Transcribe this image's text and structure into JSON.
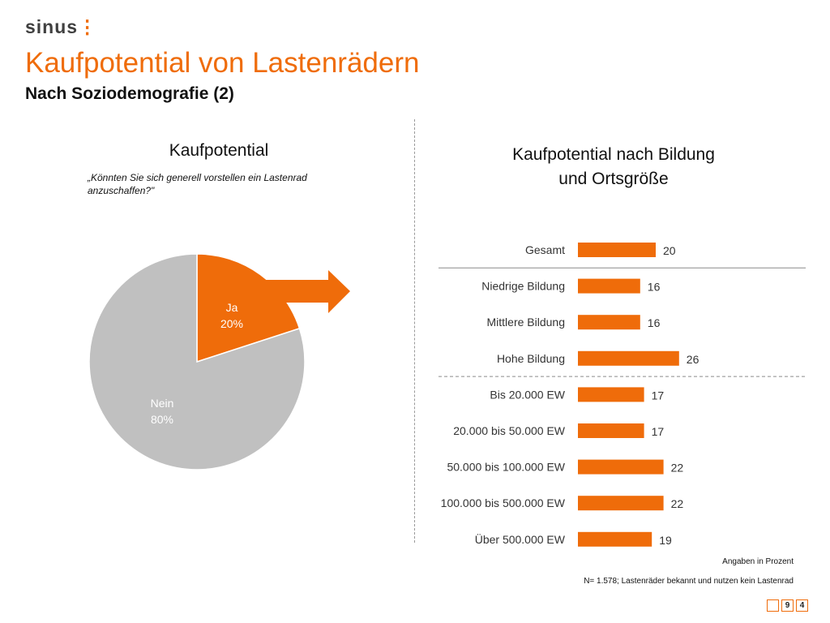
{
  "brand": {
    "logo_text": "sinus",
    "accent_color": "#ef6c0a"
  },
  "header": {
    "title": "Kaufpotential von Lastenrädern",
    "subtitle": "Nach Soziodemografie (2)"
  },
  "left_panel": {
    "heading": "Kaufpotential",
    "question": "„Könnten Sie sich generell vorstellen ein Lastenrad anzuschaffen?\""
  },
  "right_panel": {
    "heading_line1": "Kaufpotential nach Bildung",
    "heading_line2": "und Ortsgröße"
  },
  "chart_data": [
    {
      "type": "pie",
      "slices": [
        {
          "label": "Ja",
          "value": 20,
          "value_label": "20%",
          "color": "#ef6c0a"
        },
        {
          "label": "Nein",
          "value": 80,
          "value_label": "80%",
          "color": "#c0c0c0"
        }
      ]
    },
    {
      "type": "bar",
      "orientation": "horizontal",
      "categories": [
        "Gesamt",
        "Niedrige Bildung",
        "Mittlere Bildung",
        "Hohe Bildung",
        "Bis 20.000 EW",
        "20.000 bis 50.000 EW",
        "50.000 bis 100.000 EW",
        "100.000 bis 500.000 EW",
        "Über 500.000 EW"
      ],
      "values": [
        20,
        16,
        16,
        26,
        17,
        17,
        22,
        22,
        19
      ],
      "color": "#ef6c0a",
      "separators": [
        {
          "after_index": 0,
          "style": "solid"
        },
        {
          "after_index": 3,
          "style": "dashed"
        }
      ]
    }
  ],
  "footer": {
    "unit_note": "Angaben in Prozent",
    "sample_note": "N= 1.578; Lastenräder bekannt und nutzen kein Lastenrad",
    "page_digits": [
      "",
      "9",
      "4"
    ]
  }
}
